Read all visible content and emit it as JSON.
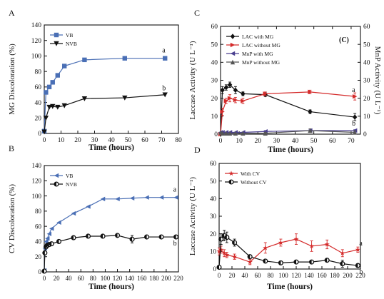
{
  "chart_data": [
    {
      "panel": "A",
      "type": "line",
      "xlabel": "Time (hours)",
      "ylabel": "MG Discoloration (%)",
      "xlim": [
        0,
        80
      ],
      "ylim": [
        0,
        140
      ],
      "xticks": [
        0,
        10,
        20,
        30,
        40,
        50,
        60,
        70,
        80
      ],
      "yticks": [
        0,
        20,
        40,
        60,
        80,
        100,
        120,
        140
      ],
      "legend_placement": "top-left",
      "series": [
        {
          "name": "VB",
          "color": "#4a6fb5",
          "marker": "square",
          "x": [
            0,
            1,
            3,
            5,
            8,
            12,
            24,
            48,
            72
          ],
          "y": [
            3,
            53,
            60,
            66,
            75,
            87,
            95,
            97,
            97
          ],
          "end_label": "a"
        },
        {
          "name": "NVB",
          "color": "#111111",
          "marker": "triangle-down",
          "x": [
            0,
            1,
            3,
            5,
            8,
            12,
            24,
            48,
            72
          ],
          "y": [
            2,
            20,
            34,
            35,
            34,
            36,
            45,
            46,
            50
          ],
          "end_label": "b"
        }
      ]
    },
    {
      "panel": "C",
      "type": "line",
      "xlabel": "Time (hours)",
      "ylabel": "Laccase Activity (U L⁻¹)",
      "ylabel_right": "MnP Activity (U L⁻¹)",
      "xlim": [
        0,
        75
      ],
      "ylim": [
        0,
        60
      ],
      "xticks": [
        0,
        10,
        20,
        30,
        40,
        50,
        60,
        70
      ],
      "yticks": [
        0,
        10,
        20,
        30,
        40,
        50,
        60
      ],
      "annotation": "(C)",
      "legend_placement": "top-left",
      "series": [
        {
          "name": "LAC with MG",
          "color": "#111111",
          "marker": "diamond",
          "x": [
            0,
            1,
            3,
            5,
            8,
            12,
            24,
            48,
            72
          ],
          "y": [
            0,
            24.5,
            26,
            27.5,
            24.5,
            22.5,
            22,
            12.5,
            9.5
          ],
          "err": [
            0,
            2,
            1.5,
            1.5,
            2,
            1,
            1,
            1,
            2
          ],
          "end_label": "b"
        },
        {
          "name": "LAC without MG",
          "color": "#d42a2a",
          "marker": "triangle-right",
          "x": [
            0,
            1,
            3,
            5,
            8,
            12,
            24,
            48,
            72
          ],
          "y": [
            0,
            12.5,
            18.5,
            20,
            19,
            18.5,
            22.5,
            23.5,
            21
          ],
          "err": [
            0,
            2,
            1.5,
            2,
            1.5,
            1.5,
            1,
            1,
            2
          ],
          "end_label": "a"
        },
        {
          "name": "MnP with MG",
          "color": "#4a3f8f",
          "marker": "triangle-left",
          "x": [
            0,
            1,
            3,
            5,
            8,
            12,
            24,
            48,
            72
          ],
          "y": [
            1,
            1,
            1,
            1,
            1,
            1,
            1.5,
            2,
            2
          ],
          "err": [
            0,
            0,
            0,
            0,
            0,
            0,
            0.5,
            0.5,
            0.5
          ]
        },
        {
          "name": "MnP without MG",
          "color": "#555555",
          "marker": "triangle-up",
          "x": [
            0,
            1,
            3,
            5,
            8,
            12,
            24,
            48,
            72
          ],
          "y": [
            1,
            0.5,
            0.5,
            0.5,
            0.5,
            0.5,
            0.5,
            2,
            1
          ],
          "err": [
            0,
            0,
            0,
            0,
            0,
            0,
            0.5,
            1,
            1
          ]
        }
      ]
    },
    {
      "panel": "B",
      "type": "line",
      "xlabel": "Time (hours)",
      "ylabel": "CV Discoloration (%)",
      "xlim": [
        0,
        220
      ],
      "ylim": [
        0,
        140
      ],
      "xticks": [
        0,
        20,
        40,
        60,
        80,
        100,
        120,
        140,
        160,
        180,
        200,
        220
      ],
      "yticks": [
        0,
        20,
        40,
        60,
        80,
        100,
        120,
        140
      ],
      "legend_placement": "top-left",
      "series": [
        {
          "name": "VB",
          "color": "#4a6fb5",
          "marker": "triangle-left",
          "x": [
            0,
            1,
            3,
            5,
            8,
            12,
            24,
            48,
            72,
            96,
            120,
            144,
            168,
            192,
            216
          ],
          "y": [
            2,
            31,
            40,
            44,
            50,
            57,
            65,
            77,
            86,
            96,
            96,
            97,
            98,
            98,
            98
          ],
          "end_label": "a"
        },
        {
          "name": "NVB",
          "color": "#111111",
          "marker": "circle-left",
          "x": [
            0,
            1,
            3,
            5,
            8,
            12,
            24,
            48,
            72,
            96,
            120,
            144,
            168,
            192,
            216
          ],
          "y": [
            1,
            25,
            33,
            35,
            36,
            37,
            40,
            45,
            47,
            47,
            48,
            43,
            46,
            46,
            46
          ],
          "err": [
            0,
            0,
            0,
            0,
            0,
            0,
            0,
            0,
            0,
            0,
            0,
            5,
            0,
            0,
            0
          ],
          "end_label": "b"
        }
      ]
    },
    {
      "panel": "D",
      "type": "line",
      "xlabel": "Time (hours)",
      "ylabel": "Laccase Activity (U L⁻¹)",
      "xlim": [
        0,
        220
      ],
      "ylim": [
        0,
        60
      ],
      "xticks": [
        0,
        20,
        40,
        60,
        80,
        100,
        120,
        140,
        160,
        180,
        200,
        220
      ],
      "yticks": [
        0,
        10,
        20,
        30,
        40,
        50,
        60
      ],
      "legend_placement": "top-left",
      "series": [
        {
          "name": "With CV",
          "color": "#d42a2a",
          "marker": "star",
          "x": [
            0,
            3,
            8,
            12,
            24,
            48,
            72,
            96,
            120,
            144,
            168,
            192,
            216
          ],
          "y": [
            10,
            11,
            9,
            8,
            7,
            4,
            12,
            15,
            17,
            13,
            14,
            9,
            11
          ],
          "err": [
            2,
            2,
            2,
            1.5,
            1.5,
            1.5,
            3,
            2,
            3,
            3,
            2.5,
            2,
            1.5
          ],
          "end_label": "a"
        },
        {
          "name": "Without CV",
          "color": "#111111",
          "marker": "circle-left",
          "x": [
            0,
            3,
            8,
            12,
            24,
            48,
            72,
            96,
            120,
            144,
            168,
            192,
            216
          ],
          "y": [
            1,
            17,
            19,
            18,
            15,
            7,
            4.5,
            3.5,
            4,
            4,
            5,
            3,
            2
          ],
          "err": [
            0,
            3,
            3,
            3,
            2,
            1,
            1,
            1,
            1,
            1,
            1,
            2,
            1
          ],
          "end_label": "b"
        }
      ]
    }
  ]
}
